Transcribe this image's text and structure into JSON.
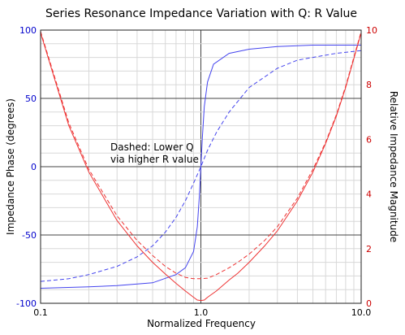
{
  "chart_data": {
    "type": "line",
    "title": "Series Resonance Impedance Variation with Q: R Value",
    "xlabel": "Normalized Frequency",
    "ylabel_left": "Impedance Phase (degrees)",
    "ylabel_right": "Relative Impedance Magnitude",
    "x_scale": "log",
    "xlim": [
      0.1,
      10.0
    ],
    "ylim_left": [
      -100,
      100
    ],
    "ylim_right": [
      0,
      10
    ],
    "x_ticks": [
      "0.1",
      "1.0",
      "10.0"
    ],
    "y_left_ticks": [
      "100",
      "50",
      "0",
      "-50",
      "-100"
    ],
    "y_right_ticks": [
      "10",
      "8",
      "6",
      "4",
      "2",
      "0"
    ],
    "grid": true,
    "annotation_lines": [
      "Dashed: Lower Q",
      "via higher R value"
    ],
    "colors": {
      "phase": "#4444ee",
      "magnitude": "#ee3333",
      "left_axis": "#0000cc",
      "right_axis": "#cc0000"
    },
    "series": [
      {
        "axis": "left",
        "style": "solid",
        "color": "#4444ee",
        "x": [
          0.1,
          0.2,
          0.3,
          0.5,
          0.7,
          0.8,
          0.9,
          0.95,
          0.98,
          1.0,
          1.02,
          1.05,
          1.1,
          1.2,
          1.5,
          2,
          3,
          5,
          10
        ],
        "y": [
          -89,
          -88,
          -87,
          -85,
          -79,
          -74,
          -62,
          -44,
          -20,
          0,
          20,
          44,
          62,
          75,
          83,
          86,
          88,
          89,
          89
        ]
      },
      {
        "axis": "left",
        "style": "dashed",
        "color": "#4444ee",
        "x": [
          0.1,
          0.15,
          0.2,
          0.3,
          0.4,
          0.5,
          0.6,
          0.7,
          0.8,
          0.9,
          1.0,
          1.1,
          1.25,
          1.5,
          2,
          3,
          4,
          5,
          7,
          10
        ],
        "y": [
          -84,
          -82,
          -79,
          -73,
          -66,
          -58,
          -48,
          -37,
          -25,
          -12,
          0,
          12,
          25,
          40,
          58,
          72,
          78,
          80,
          83,
          85
        ]
      },
      {
        "axis": "right",
        "style": "solid",
        "color": "#ee3333",
        "x": [
          0.1,
          0.15,
          0.2,
          0.3,
          0.4,
          0.5,
          0.6,
          0.7,
          0.8,
          0.9,
          0.95,
          1.0,
          1.05,
          1.1,
          1.25,
          1.5,
          1.7,
          2,
          2.5,
          3,
          4,
          5,
          6,
          7,
          8,
          10
        ],
        "y": [
          9.9,
          6.5,
          4.8,
          3.03,
          2.1,
          1.5,
          1.07,
          0.73,
          0.45,
          0.22,
          0.12,
          0.1,
          0.12,
          0.22,
          0.45,
          0.85,
          1.1,
          1.5,
          2.1,
          2.65,
          3.75,
          4.8,
          5.85,
          6.85,
          7.9,
          9.9
        ]
      },
      {
        "axis": "right",
        "style": "dashed",
        "color": "#ee3333",
        "x": [
          0.1,
          0.15,
          0.2,
          0.3,
          0.4,
          0.5,
          0.6,
          0.7,
          0.8,
          0.9,
          1.0,
          1.1,
          1.25,
          1.5,
          1.7,
          2,
          2.5,
          3,
          4,
          5,
          6,
          7,
          8,
          10
        ],
        "y": [
          9.95,
          6.6,
          4.9,
          3.2,
          2.3,
          1.75,
          1.35,
          1.1,
          0.95,
          0.9,
          0.9,
          0.92,
          1.05,
          1.3,
          1.5,
          1.8,
          2.3,
          2.8,
          3.85,
          4.9,
          5.9,
          6.9,
          7.95,
          9.95
        ]
      }
    ]
  }
}
